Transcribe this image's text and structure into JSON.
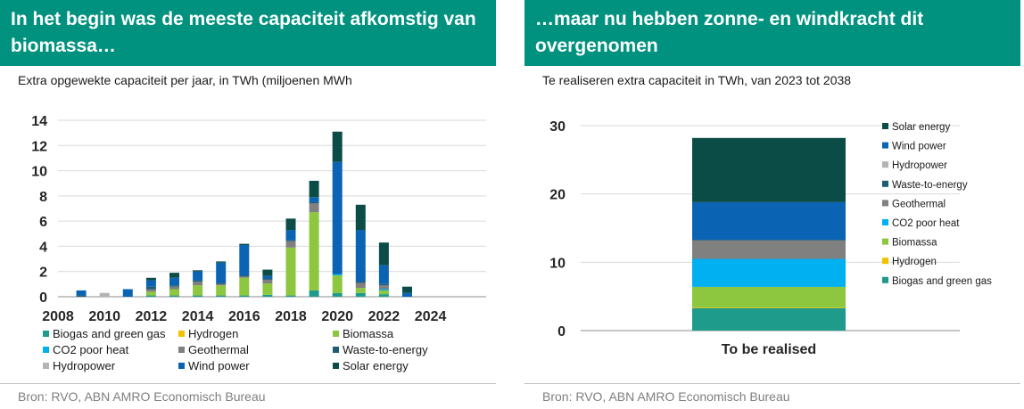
{
  "colors": {
    "banner": "#00927f",
    "biogas": "#1e9b8a",
    "hydrogen": "#f2c200",
    "biomassa": "#8dc63f",
    "co2": "#00b0f0",
    "geothermal": "#808080",
    "waste": "#1f5c72",
    "hydropower": "#b4b4b4",
    "wind": "#0a63b3",
    "solar": "#0c4c46"
  },
  "left": {
    "title": "In het begin was de meeste capaciteit afkomstig van biomassa…",
    "subtitle": "Extra opgewekte capaciteit per jaar, in TWh (miljoenen MWh",
    "source": "Bron: RVO, ABN AMRO Economisch Bureau"
  },
  "right": {
    "title": "…maar nu hebben zonne- en windkracht dit overgenomen",
    "subtitle": "Te realiseren extra capaciteit in TWh, van 2023 tot 2038",
    "source": "Bron: RVO, ABN AMRO Economisch Bureau"
  },
  "chart_data": [
    {
      "type": "bar",
      "stacked": true,
      "title": "Extra opgewekte capaciteit per jaar, in TWh (miljoenen MWh",
      "xlabel": "",
      "ylabel": "",
      "ylim": [
        0,
        14
      ],
      "yticks": [
        0,
        2,
        4,
        6,
        8,
        10,
        12,
        14
      ],
      "xtick_labels": [
        "2008",
        "2010",
        "2012",
        "2014",
        "2016",
        "2018",
        "2020",
        "2022",
        "2024"
      ],
      "categories": [
        "2009",
        "2010",
        "2011",
        "2012",
        "2013",
        "2014",
        "2015",
        "2016",
        "2017",
        "2018",
        "2019",
        "2020",
        "2021",
        "2022",
        "2023"
      ],
      "grid": true,
      "legend_position": "bottom",
      "series": [
        {
          "name": "Biogas and green gas",
          "color_key": "biogas",
          "values": [
            0,
            0,
            0,
            0.1,
            0.1,
            0.1,
            0.1,
            0.1,
            0.15,
            0.1,
            0.5,
            0.3,
            0.3,
            0.2,
            0
          ]
        },
        {
          "name": "Hydrogen",
          "color_key": "hydrogen",
          "values": [
            0,
            0,
            0,
            0,
            0,
            0,
            0,
            0,
            0,
            0,
            0,
            0,
            0,
            0,
            0
          ]
        },
        {
          "name": "Biomassa",
          "color_key": "biomassa",
          "values": [
            0,
            0,
            0,
            0.3,
            0.5,
            0.8,
            0.8,
            1.4,
            0.9,
            3.8,
            6.2,
            1.4,
            0.4,
            0.3,
            0
          ]
        },
        {
          "name": "CO2 poor heat",
          "color_key": "co2",
          "values": [
            0,
            0,
            0,
            0,
            0,
            0,
            0,
            0,
            0,
            0,
            0,
            0.1,
            0,
            0.1,
            0
          ]
        },
        {
          "name": "Geothermal",
          "color_key": "geothermal",
          "values": [
            0,
            0,
            0,
            0.2,
            0.2,
            0.3,
            0.1,
            0.1,
            0.3,
            0.5,
            0.7,
            0,
            0.4,
            0.3,
            0
          ]
        },
        {
          "name": "Waste-to-energy",
          "color_key": "waste",
          "values": [
            0.1,
            0,
            0,
            0.2,
            0.1,
            0.1,
            0.1,
            0.1,
            0.1,
            0.1,
            0.1,
            0,
            0.1,
            0.1,
            0
          ]
        },
        {
          "name": "Hydropower",
          "color_key": "hydropower",
          "values": [
            0,
            0.3,
            0,
            0,
            0,
            0,
            0,
            0,
            0,
            0,
            0,
            0,
            0,
            0,
            0
          ]
        },
        {
          "name": "Wind power",
          "color_key": "wind",
          "values": [
            0.4,
            0,
            0.6,
            0.5,
            0.6,
            0.7,
            1.6,
            2.4,
            0.2,
            0.8,
            0.4,
            8.9,
            4.1,
            1.5,
            0.3
          ]
        },
        {
          "name": "Solar energy",
          "color_key": "solar",
          "values": [
            0,
            0,
            0,
            0.2,
            0.4,
            0.1,
            0.1,
            0.1,
            0.5,
            0.9,
            1.3,
            2.4,
            2.0,
            1.8,
            0.5
          ]
        }
      ]
    },
    {
      "type": "bar",
      "stacked": true,
      "title": "Te realiseren extra capaciteit in TWh, van 2023 tot 2038",
      "xlabel": "",
      "ylabel": "",
      "ylim": [
        0,
        30
      ],
      "yticks": [
        0,
        10,
        20,
        30
      ],
      "categories": [
        "To be realised"
      ],
      "grid": true,
      "legend_position": "right",
      "series": [
        {
          "name": "Biogas and green gas",
          "color_key": "biogas",
          "values": [
            3.3
          ]
        },
        {
          "name": "Hydrogen",
          "color_key": "hydrogen",
          "values": [
            0.1
          ]
        },
        {
          "name": "Biomassa",
          "color_key": "biomassa",
          "values": [
            3.0
          ]
        },
        {
          "name": "CO2 poor heat",
          "color_key": "co2",
          "values": [
            4.1
          ]
        },
        {
          "name": "Geothermal",
          "color_key": "geothermal",
          "values": [
            2.7
          ]
        },
        {
          "name": "Waste-to-energy",
          "color_key": "waste",
          "values": [
            0.1
          ]
        },
        {
          "name": "Hydropower",
          "color_key": "hydropower",
          "values": [
            0
          ]
        },
        {
          "name": "Wind power",
          "color_key": "wind",
          "values": [
            5.5
          ]
        },
        {
          "name": "Solar energy",
          "color_key": "solar",
          "values": [
            9.4
          ]
        }
      ]
    }
  ]
}
